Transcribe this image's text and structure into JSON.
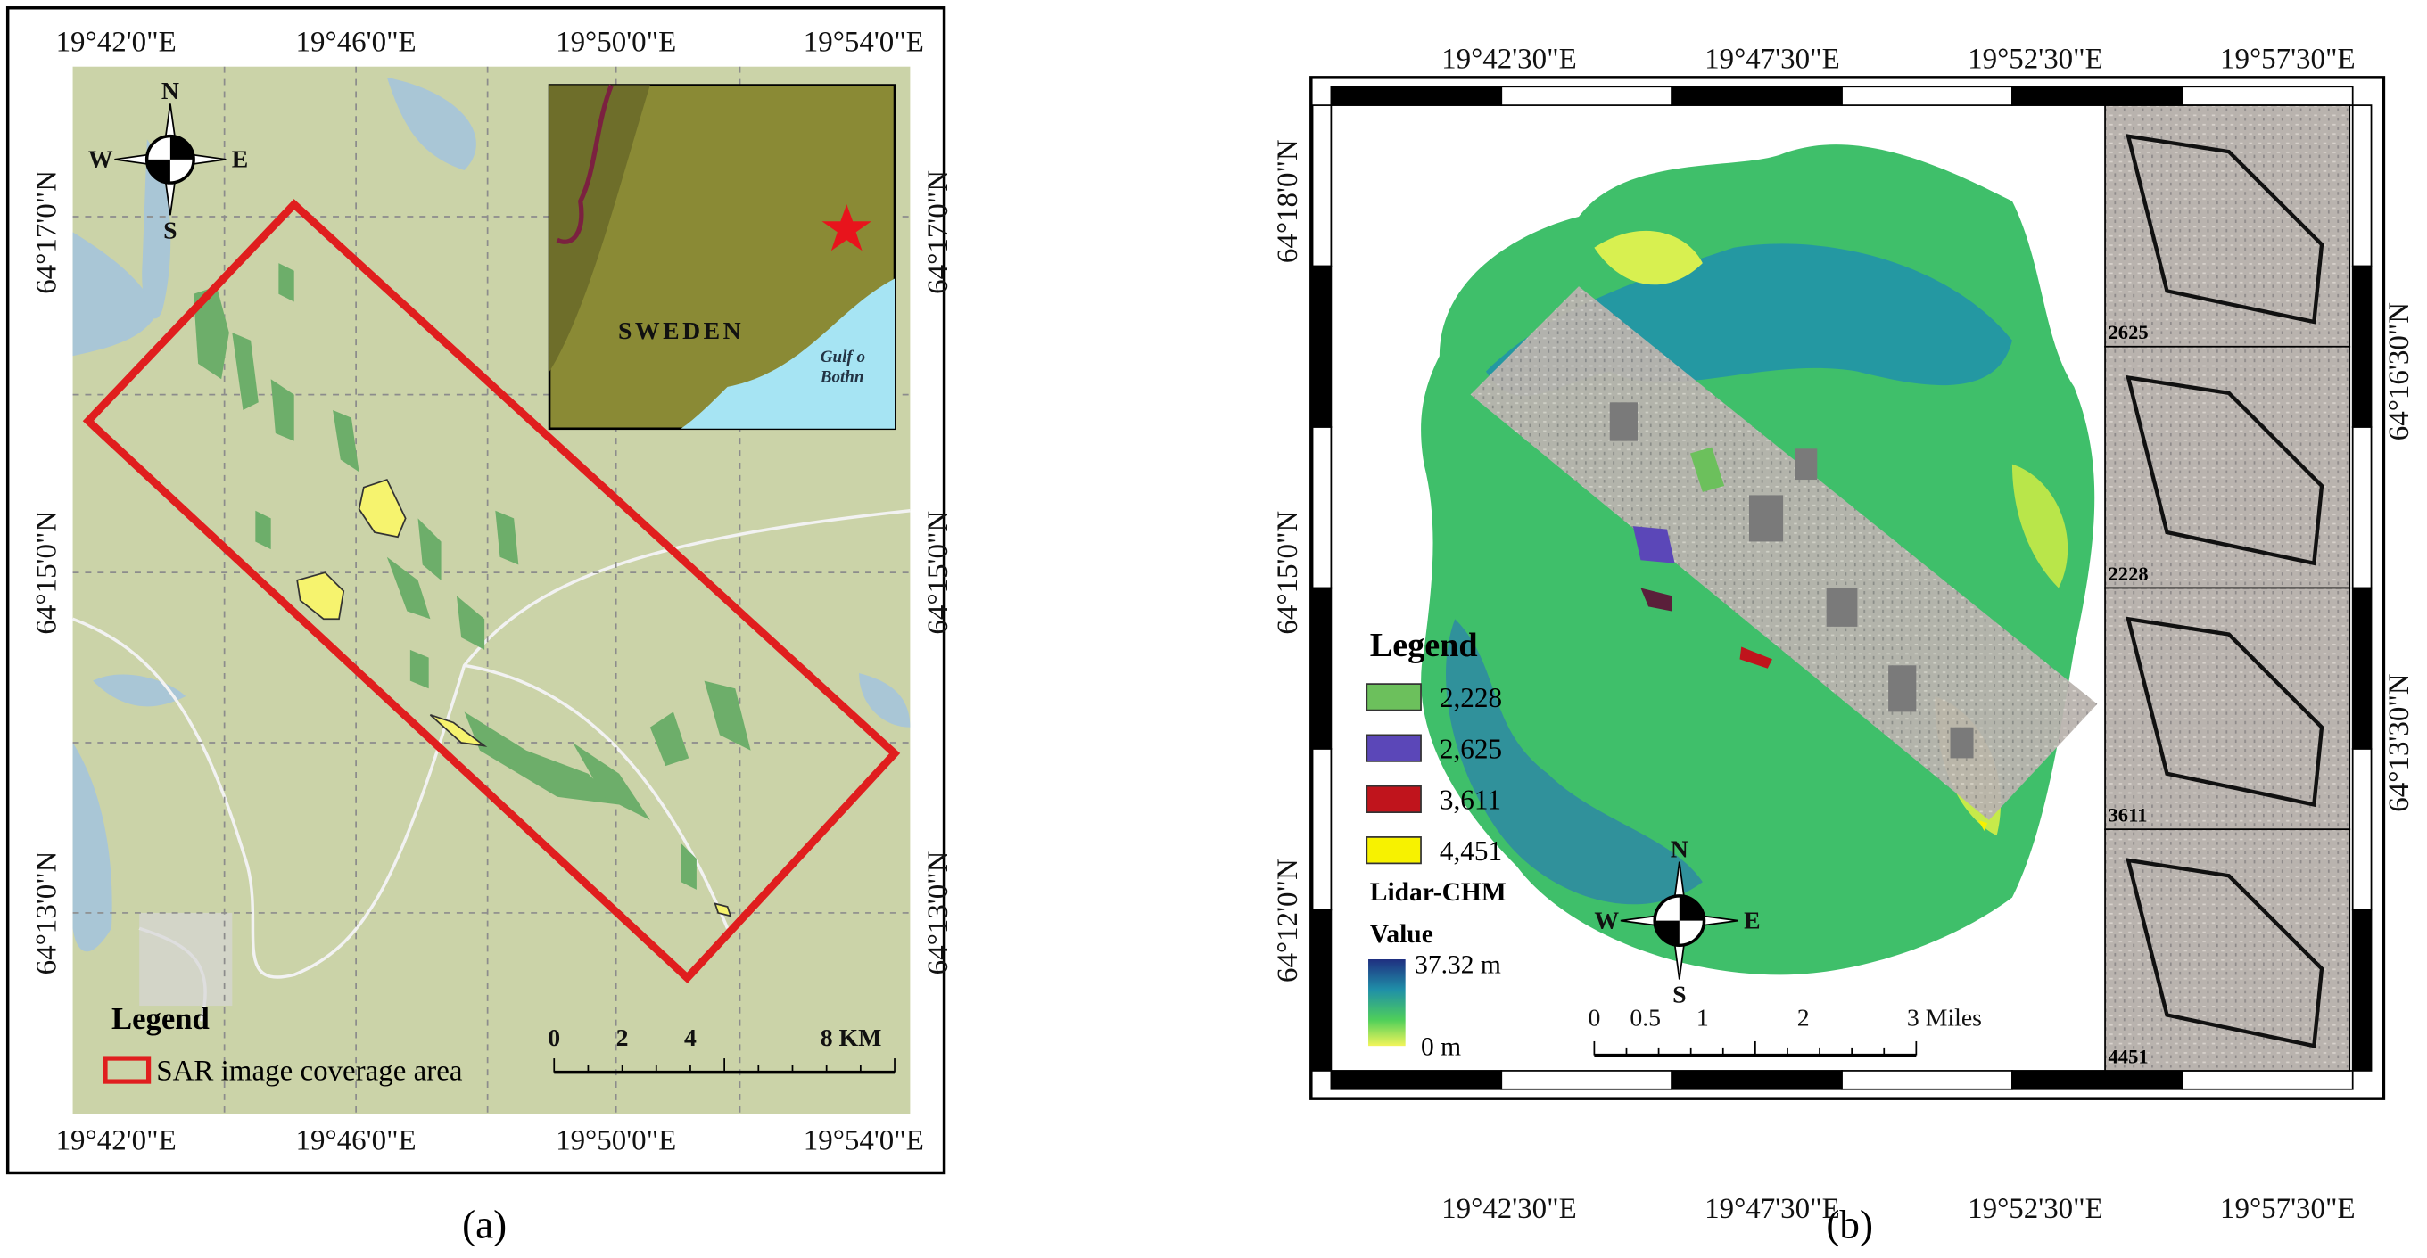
{
  "panel_a": {
    "caption": "(a)",
    "top_labels": [
      "19°42'0\"E",
      "19°46'0\"E",
      "19°50'0\"E",
      "19°54'0\"E"
    ],
    "bottom_labels": [
      "19°42'0\"E",
      "19°46'0\"E",
      "19°50'0\"E",
      "19°54'0\"E"
    ],
    "left_labels": [
      "64°17'0\"N",
      "64°15'0\"N",
      "64°13'0\"N"
    ],
    "right_labels": [
      "64°17'0\"N",
      "64°15'0\"N",
      "64°13'0\"N"
    ],
    "compass": {
      "n": "N",
      "w": "W",
      "e": "E",
      "s": "S"
    },
    "inset": {
      "country": "SWEDEN",
      "sea_line1": "Gulf o",
      "sea_line2": "Bothn"
    },
    "legend": {
      "title": "Legend",
      "item": "SAR image coverage area"
    },
    "scale_bar": [
      "0",
      "2",
      "4",
      "8 KM"
    ]
  },
  "panel_b": {
    "caption": "(b)",
    "top_labels": [
      "19°42'30\"E",
      "19°47'30\"E",
      "19°52'30\"E",
      "19°57'30\"E"
    ],
    "bottom_labels": [
      "19°42'30\"E",
      "19°47'30\"E",
      "19°52'30\"E",
      "19°57'30\"E"
    ],
    "left_labels": [
      "64°18'0\"N",
      "64°15'0\"N",
      "64°12'0\"N"
    ],
    "right_labels": [
      "64°16'30\"N",
      "64°13'30\"N"
    ],
    "legend": {
      "title": "Legend",
      "items": [
        {
          "label": "2,228",
          "color": "#6cc05c"
        },
        {
          "label": "2,625",
          "color": "#5b47b8"
        },
        {
          "label": "3,611",
          "color": "#c0141c"
        },
        {
          "label": "4,451",
          "color": "#f7f200"
        }
      ],
      "layer": "Lidar-CHM",
      "value": "Value",
      "high": "37.32 m",
      "low": "0 m"
    },
    "compass": {
      "n": "N",
      "w": "W",
      "e": "E",
      "s": "S"
    },
    "scale_bar": [
      "0",
      "0.5",
      "1",
      "2",
      "3 Miles"
    ],
    "insets": [
      "2625",
      "2228",
      "3611",
      "4451"
    ]
  }
}
